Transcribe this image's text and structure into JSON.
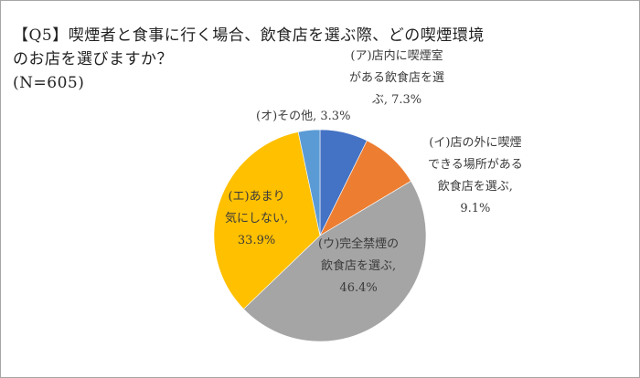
{
  "title": {
    "line1": "【Q5】喫煙者と食事に行く場合、飲食店を選ぶ際、どの喫煙環境",
    "line2": "のお店を選びますか？",
    "line3": "(N=605)"
  },
  "chart_data": {
    "type": "pie",
    "title": "【Q5】喫煙者と食事に行く場合、飲食店を選ぶ際、どの喫煙環境のお店を選びますか？ (N=605)",
    "categories": [
      "(ア)店内に喫煙室がある飲食店を選ぶ",
      "(イ)店の外に喫煙できる場所がある飲食店を選ぶ",
      "(ウ)完全禁煙の飲食店を選ぶ",
      "(エ)あまり気にしない",
      "(オ)その他"
    ],
    "values": [
      7.3,
      9.1,
      46.4,
      33.9,
      3.3
    ],
    "unit": "%",
    "colors": [
      "#4472c4",
      "#ed7d31",
      "#a5a5a5",
      "#ffc000",
      "#5b9bd5"
    ],
    "start_angle_deg": 0,
    "direction": "clockwise",
    "legend": "none (data labels)",
    "sample_size": 605
  },
  "labels": [
    {
      "lines": [
        "(ア)店内に喫煙室",
        "がある飲食店を選",
        "ぶ, 7.3%"
      ]
    },
    {
      "lines": [
        "(イ)店の外に喫煙",
        "できる場所がある",
        "飲食店を選ぶ,",
        "9.1%"
      ]
    },
    {
      "lines": [
        "(ウ)完全禁煙の",
        "飲食店を選ぶ,",
        "46.4%"
      ]
    },
    {
      "lines": [
        "(エ)あまり",
        "気にしない,",
        "33.9%"
      ]
    },
    {
      "lines": [
        "(オ)その他, 3.3%"
      ]
    }
  ]
}
